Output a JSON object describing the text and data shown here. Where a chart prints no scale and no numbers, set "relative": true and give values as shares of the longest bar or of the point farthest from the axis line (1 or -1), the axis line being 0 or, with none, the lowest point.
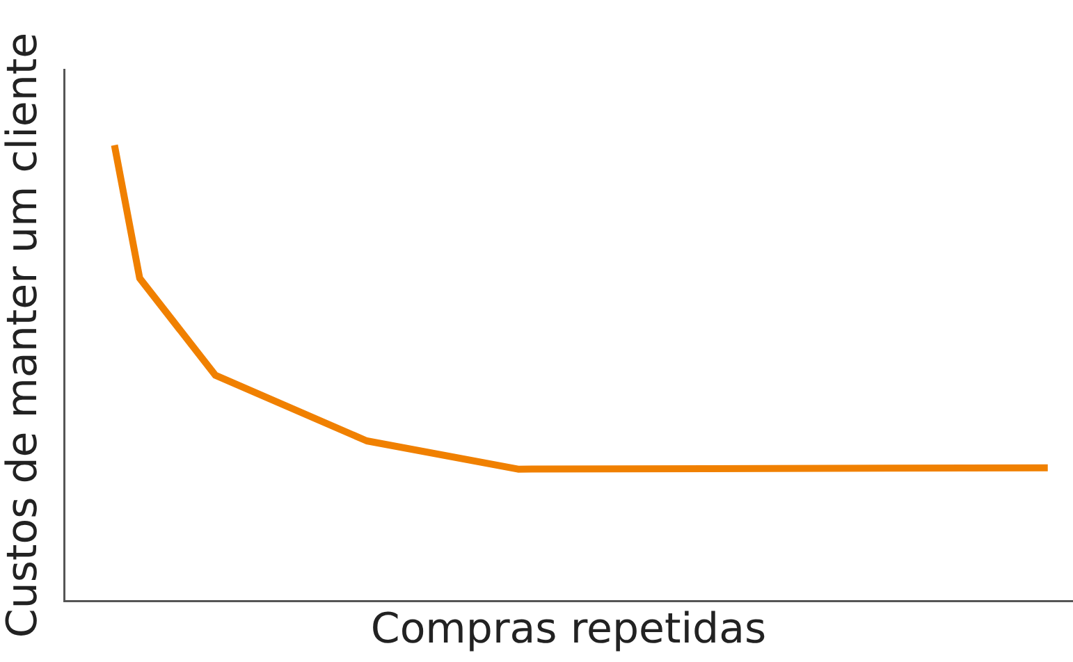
{
  "chart_data": {
    "type": "line",
    "relative": true,
    "xlabel": "Compras repetidas",
    "ylabel": "Custos de manter um cliente",
    "categories": [
      null,
      null,
      null,
      null,
      null,
      null,
      null,
      null,
      null,
      null,
      null,
      null,
      null,
      null,
      null,
      null,
      null,
      null,
      null,
      null,
      null,
      null,
      null,
      null,
      null,
      null,
      null,
      null,
      null,
      null,
      null,
      null,
      null,
      null,
      null,
      null,
      null,
      null,
      null,
      null,
      null
    ],
    "series": [
      {
        "color": "#f08000",
        "values": [
          null,
          null,
          1,
          0.708,
          null,
          null,
          0.495,
          null,
          null,
          null,
          null,
          null,
          0.351,
          null,
          null,
          null,
          null,
          null,
          0.289,
          null,
          null,
          null,
          null,
          null,
          null,
          null,
          null,
          null,
          null,
          null,
          null,
          null,
          null,
          null,
          null,
          null,
          null,
          null,
          null,
          0.292,
          null
        ]
      }
    ],
    "grid": false,
    "legend": false,
    "marker": "none",
    "line_style": "solid"
  }
}
